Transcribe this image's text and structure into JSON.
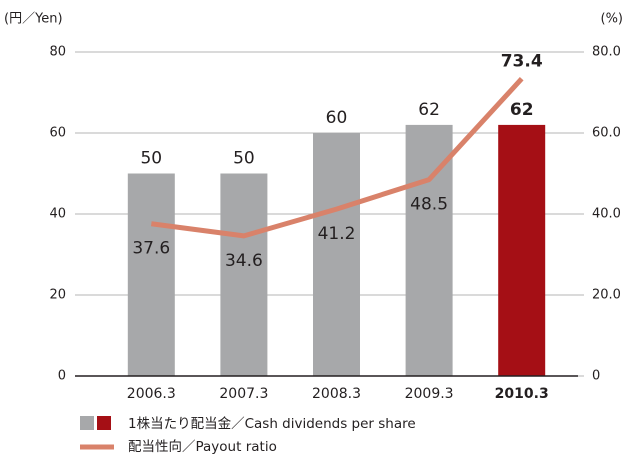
{
  "chart_data": {
    "type": "bar",
    "y_unit_label": "(円／Yen)",
    "y2_unit_label": "(%)",
    "categories": [
      "2006.3",
      "2007.3",
      "2008.3",
      "2009.3",
      "2010.3"
    ],
    "series": [
      {
        "name": "1株当たり配当金／Cash dividends per share",
        "type": "bar",
        "values": [
          50,
          50,
          60,
          62,
          62
        ],
        "colors": [
          "#a7a8aa",
          "#a7a8aa",
          "#a7a8aa",
          "#a7a8aa",
          "#a50f15"
        ]
      },
      {
        "name": "配当性向／Payout ratio",
        "type": "line",
        "axis": "y2",
        "color": "#d9826a",
        "values": [
          37.6,
          34.6,
          41.2,
          48.5,
          73.4
        ]
      }
    ],
    "ylim": [
      0,
      80
    ],
    "yticks": [
      0,
      20,
      40,
      60,
      80
    ],
    "y2lim": [
      0,
      80
    ],
    "y2ticks": [
      0,
      {
        "value": 20,
        "label": "20.0"
      },
      {
        "value": 40,
        "label": "40.0"
      },
      {
        "value": 60,
        "label": "60.0"
      },
      {
        "value": 80,
        "label": "80.0"
      }
    ],
    "grid": true
  }
}
